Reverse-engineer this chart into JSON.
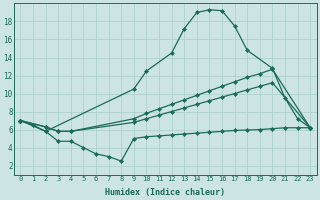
{
  "bg_color": "#cde4e4",
  "line_color": "#1a6b5a",
  "grid_color": "#aacece",
  "xlabel": "Humidex (Indice chaleur)",
  "xlim": [
    -0.5,
    23.5
  ],
  "ylim": [
    1.0,
    20.0
  ],
  "yticks": [
    2,
    4,
    6,
    8,
    10,
    12,
    14,
    16,
    18
  ],
  "xticks": [
    0,
    1,
    2,
    3,
    4,
    5,
    6,
    7,
    8,
    9,
    10,
    11,
    12,
    13,
    14,
    15,
    16,
    17,
    18,
    19,
    20,
    21,
    22,
    23
  ],
  "line1_x": [
    0,
    1,
    2,
    9,
    10,
    12,
    13,
    14,
    15,
    16,
    17,
    18,
    20,
    21,
    22,
    23
  ],
  "line1_y": [
    7.0,
    6.5,
    5.8,
    10.5,
    12.5,
    14.5,
    17.2,
    19.0,
    19.3,
    19.2,
    17.5,
    14.8,
    12.8,
    9.5,
    7.2,
    6.2
  ],
  "line2_x": [
    0,
    2,
    3,
    4,
    9,
    10,
    11,
    12,
    13,
    14,
    15,
    16,
    17,
    18,
    19,
    20,
    23
  ],
  "line2_y": [
    7.0,
    6.3,
    5.8,
    5.8,
    7.2,
    7.8,
    8.3,
    8.8,
    9.3,
    9.8,
    10.3,
    10.8,
    11.3,
    11.8,
    12.2,
    12.7,
    6.2
  ],
  "line3_x": [
    0,
    2,
    3,
    4,
    9,
    10,
    11,
    12,
    13,
    14,
    15,
    16,
    17,
    18,
    19,
    20,
    23
  ],
  "line3_y": [
    7.0,
    6.3,
    5.8,
    5.8,
    6.8,
    7.2,
    7.6,
    8.0,
    8.4,
    8.8,
    9.2,
    9.6,
    10.0,
    10.4,
    10.8,
    11.2,
    6.2
  ],
  "line4_x": [
    0,
    2,
    3,
    4,
    5,
    6,
    7,
    8,
    9,
    10,
    11,
    12,
    13,
    14,
    15,
    16,
    17,
    18,
    19,
    20,
    21,
    22,
    23
  ],
  "line4_y": [
    7.0,
    5.8,
    4.7,
    4.7,
    4.0,
    3.3,
    3.0,
    2.5,
    5.0,
    5.2,
    5.3,
    5.4,
    5.5,
    5.6,
    5.7,
    5.8,
    5.9,
    5.95,
    6.0,
    6.1,
    6.2,
    6.2,
    6.2
  ]
}
